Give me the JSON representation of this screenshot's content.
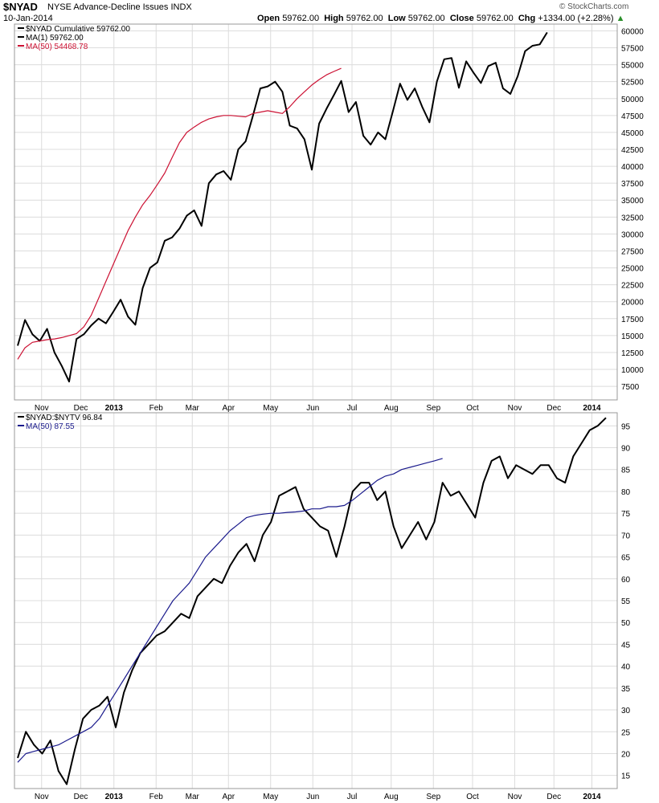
{
  "header": {
    "symbol": "$NYAD",
    "description": "NYSE Advance-Decline Issues INDX",
    "date": "10-Jan-2014",
    "brand": "© StockCharts.com",
    "open_label": "Open",
    "open": "59762.00",
    "high_label": "High",
    "high": "59762.00",
    "low_label": "Low",
    "low": "59762.00",
    "close_label": "Close",
    "close": "59762.00",
    "chg_label": "Chg",
    "chg": "+1334.00 (+2.28%)",
    "up_arrow": "▲"
  },
  "months": [
    "Nov",
    "Dec",
    "2013",
    "Feb",
    "Mar",
    "Apr",
    "May",
    "Jun",
    "Jul",
    "Aug",
    "Sep",
    "Oct",
    "Nov",
    "Dec",
    "2014"
  ],
  "colors": {
    "price": "#000000",
    "ma_top": "#cc1133",
    "ma_bottom": "#1a1a8c",
    "grid": "#dcdcdc",
    "border": "#999999"
  },
  "chart_data": [
    {
      "type": "line",
      "legend": [
        "$NYAD Cumulative 59762.00",
        "MA(1) 59762.00",
        "MA(50) 54468.78"
      ],
      "ylim": [
        5500,
        61000
      ],
      "yticks": [
        7500,
        10000,
        12500,
        15000,
        17500,
        20000,
        22500,
        25000,
        27500,
        30000,
        32500,
        35000,
        37500,
        40000,
        42500,
        45000,
        47500,
        50000,
        52500,
        55000,
        57500,
        60000
      ],
      "x": [
        0,
        1,
        2,
        3,
        4,
        5,
        6,
        7,
        8,
        9,
        10,
        11,
        12,
        13,
        14,
        15,
        16,
        17,
        18,
        19,
        20,
        21,
        22,
        23,
        24,
        25,
        26,
        27,
        28,
        29,
        30,
        31,
        32,
        33,
        34,
        35,
        36,
        37,
        38,
        39,
        40,
        41,
        42,
        43,
        44,
        45,
        46,
        47,
        48,
        49,
        50,
        51,
        52,
        53,
        54,
        55,
        56,
        57,
        58,
        59,
        60,
        61,
        62,
        63,
        64,
        65,
        66,
        67,
        68,
        69,
        70,
        71,
        72,
        73,
        74,
        75,
        76,
        77,
        78,
        79,
        80
      ],
      "series": [
        {
          "name": "$NYAD Cumulative",
          "values": [
            13500,
            17300,
            15200,
            14200,
            16000,
            12500,
            10500,
            8200,
            14500,
            15200,
            16500,
            17500,
            16800,
            18500,
            20300,
            17800,
            16600,
            22000,
            25000,
            25800,
            29000,
            29500,
            30800,
            32700,
            33500,
            31200,
            37500,
            38800,
            39300,
            38000,
            42500,
            43700,
            47500,
            51500,
            51800,
            52500,
            51000,
            46000,
            45600,
            44000,
            39500,
            46300,
            48500,
            50500,
            52600,
            48000,
            49500,
            44500,
            43200,
            45000,
            44000,
            48000,
            52200,
            49800,
            51500,
            48800,
            46500,
            52500,
            55800,
            56000,
            51600,
            55500,
            53800,
            52300,
            54800,
            55300,
            51500,
            50700,
            53300,
            57000,
            57800,
            58000,
            59762,
            null,
            null,
            null,
            null,
            null,
            null,
            null,
            null
          ]
        },
        {
          "name": "MA(50)",
          "values": [
            11500,
            13200,
            14000,
            14200,
            14400,
            14500,
            14700,
            15000,
            15300,
            16300,
            18000,
            20500,
            23000,
            25500,
            28000,
            30500,
            32500,
            34300,
            35700,
            37300,
            39000,
            41300,
            43500,
            45000,
            45800,
            46500,
            47000,
            47300,
            47500,
            47500,
            47400,
            47300,
            47800,
            48000,
            48200,
            48000,
            47800,
            48800,
            50000,
            51000,
            52000,
            52800,
            53500,
            54000,
            54468,
            null,
            null,
            null,
            null,
            null,
            null,
            null,
            null,
            null,
            null,
            null,
            null,
            null,
            null,
            null,
            null,
            null,
            null,
            null,
            null,
            null,
            null,
            null,
            null,
            null,
            null,
            null,
            null,
            null,
            null,
            null,
            null,
            null,
            null,
            null,
            null
          ]
        }
      ]
    },
    {
      "type": "line",
      "legend": [
        "$NYAD:$NYTV 96.84",
        "MA(50) 87.55"
      ],
      "ylim": [
        12,
        98
      ],
      "yticks": [
        15,
        20,
        25,
        30,
        35,
        40,
        45,
        50,
        55,
        60,
        65,
        70,
        75,
        80,
        85,
        90,
        95
      ],
      "x": [
        0,
        1,
        2,
        3,
        4,
        5,
        6,
        7,
        8,
        9,
        10,
        11,
        12,
        13,
        14,
        15,
        16,
        17,
        18,
        19,
        20,
        21,
        22,
        23,
        24,
        25,
        26,
        27,
        28,
        29,
        30,
        31,
        32,
        33,
        34,
        35,
        36,
        37,
        38,
        39,
        40,
        41,
        42,
        43,
        44,
        45,
        46,
        47,
        48,
        49,
        50,
        51,
        52,
        53,
        54,
        55,
        56,
        57,
        58,
        59,
        60,
        61,
        62,
        63,
        64,
        65,
        66,
        67,
        68,
        69,
        70,
        71,
        72
      ],
      "series": [
        {
          "name": "$NYAD:$NYTV",
          "values": [
            19,
            25,
            22,
            20,
            23,
            16,
            13,
            21,
            28,
            30,
            31,
            33,
            26,
            34,
            39,
            43,
            45,
            47,
            48,
            50,
            52,
            51,
            56,
            58,
            60,
            59,
            63,
            66,
            68,
            64,
            70,
            73,
            79,
            80,
            81,
            76,
            74,
            72,
            71,
            65,
            72,
            80,
            82,
            82,
            78,
            80,
            72,
            67,
            70,
            73,
            69,
            73,
            82,
            79,
            80,
            77,
            74,
            82,
            87,
            88,
            83,
            86,
            85,
            84,
            86,
            86,
            83,
            82,
            88,
            91,
            94,
            95,
            96.84
          ]
        },
        {
          "name": "MA(50)",
          "values": [
            18,
            20,
            20.5,
            21,
            21.5,
            22,
            23,
            24,
            25,
            26,
            28,
            31,
            34,
            37,
            40,
            43,
            46,
            49,
            52,
            55,
            57,
            59,
            62,
            65,
            67,
            69,
            71,
            72.5,
            74,
            74.5,
            74.8,
            75,
            75,
            75.2,
            75.3,
            75.5,
            76,
            76,
            76.5,
            76.5,
            76.8,
            78,
            79.5,
            81,
            82.5,
            83.5,
            84,
            85,
            85.5,
            86,
            86.5,
            87,
            87.55,
            null,
            null,
            null,
            null,
            null,
            null,
            null,
            null,
            null,
            null,
            null,
            null,
            null,
            null,
            null,
            null,
            null,
            null,
            null,
            null
          ]
        }
      ]
    }
  ]
}
